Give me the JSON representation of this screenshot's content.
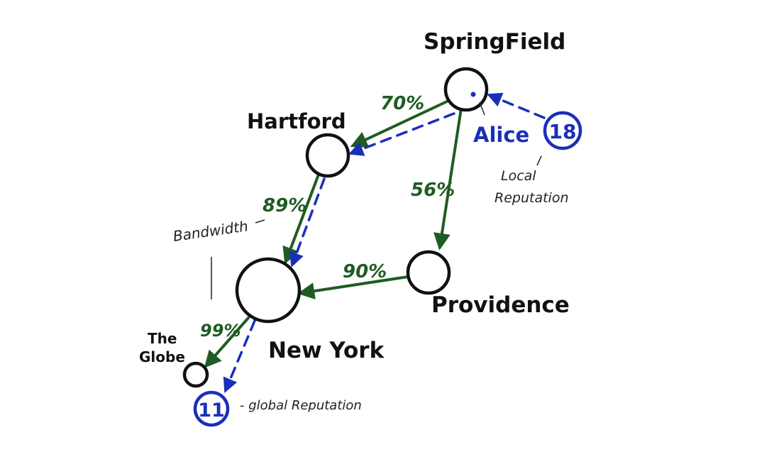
{
  "nodes": {
    "springfield": "SpringField",
    "hartford": "Hartford",
    "new_york": "New York",
    "providence": "Providence",
    "the_globe_line1": "The",
    "the_globe_line2": "Globe"
  },
  "edges": {
    "springfield_hartford": "70%",
    "springfield_providence": "56%",
    "hartford_new_york": "89%",
    "providence_new_york": "90%",
    "new_york_globe": "99%"
  },
  "alice": {
    "name": "Alice",
    "local_reputation": "18",
    "local_reputation_label_line1": "Local",
    "local_reputation_label_line2": "Reputation"
  },
  "global": {
    "value": "11",
    "label": "- global Reputation"
  },
  "annotations": {
    "bandwidth": "Bandwidth"
  },
  "colors": {
    "edge": "#1f5c23",
    "reputation": "#1a2fb8",
    "node": "#111111"
  }
}
